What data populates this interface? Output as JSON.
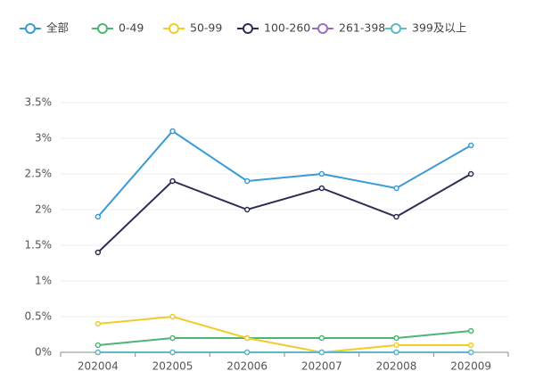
{
  "chart_data": {
    "type": "line",
    "categories": [
      "202004",
      "202005",
      "202006",
      "202007",
      "202008",
      "202009"
    ],
    "series": [
      {
        "name": "全部",
        "color": "#3a9bd5",
        "values": [
          1.9,
          3.1,
          2.4,
          2.5,
          2.3,
          2.9
        ]
      },
      {
        "name": "0-49",
        "color": "#4cb574",
        "values": [
          0.1,
          0.2,
          0.2,
          0.2,
          0.2,
          0.3
        ]
      },
      {
        "name": "50-99",
        "color": "#f0cc24",
        "values": [
          0.4,
          0.5,
          0.2,
          0.0,
          0.1,
          0.1
        ]
      },
      {
        "name": "100-260",
        "color": "#2c2f52",
        "values": [
          1.4,
          2.4,
          2.0,
          2.3,
          1.9,
          2.5
        ]
      },
      {
        "name": "261-398",
        "color": "#9a6cc4",
        "values": [
          0,
          0,
          0,
          0,
          0,
          0
        ]
      },
      {
        "name": "399及以上",
        "color": "#5cb9c8",
        "values": [
          0,
          0,
          0,
          0,
          0,
          0
        ]
      }
    ],
    "ylim": [
      0,
      3.5
    ],
    "yticks": [
      {
        "value": 0,
        "label": "0%"
      },
      {
        "value": 0.5,
        "label": "0.5%"
      },
      {
        "value": 1,
        "label": "1%"
      },
      {
        "value": 1.5,
        "label": "1.5%"
      },
      {
        "value": 2,
        "label": "2%"
      },
      {
        "value": 2.5,
        "label": "2.5%"
      },
      {
        "value": 3,
        "label": "3%"
      },
      {
        "value": 3.5,
        "label": "3.5%"
      }
    ],
    "grid": true
  }
}
